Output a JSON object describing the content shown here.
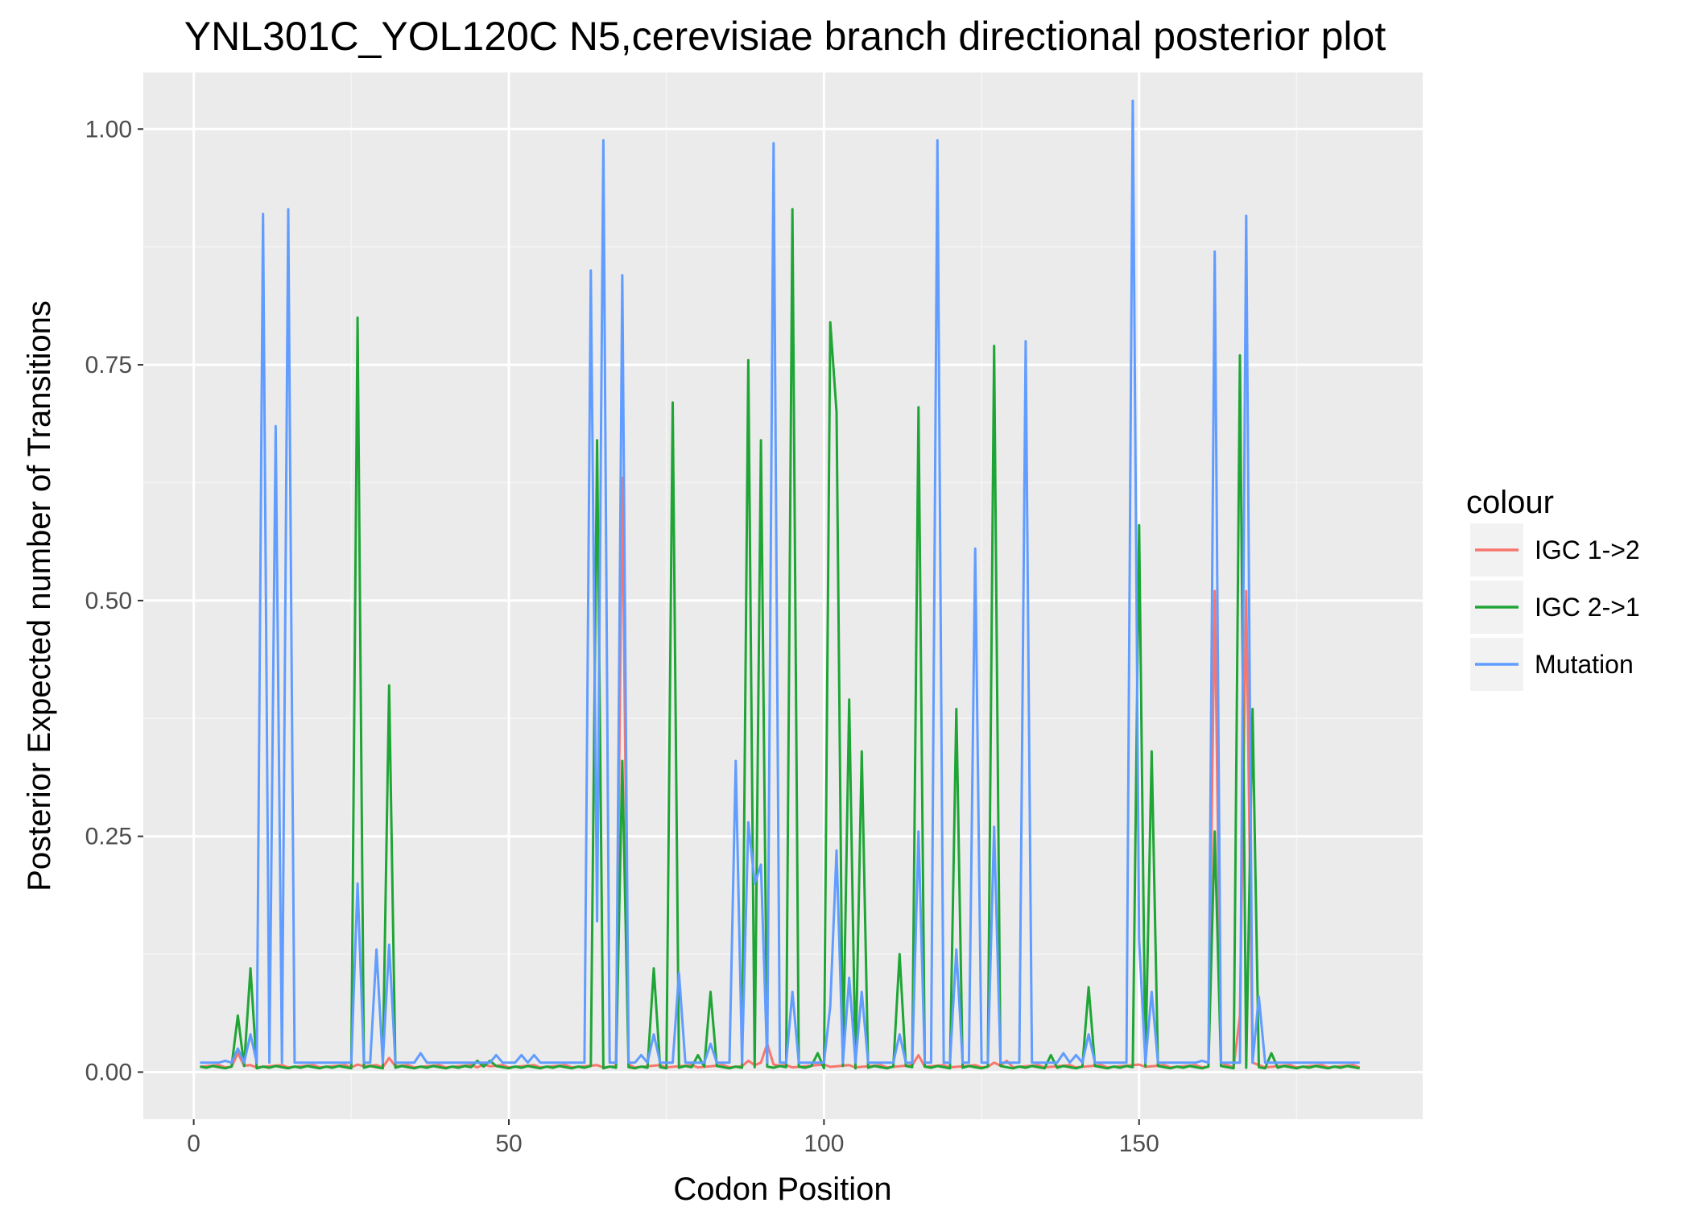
{
  "chart_data": {
    "type": "line",
    "title": "YNL301C_YOL120C N5,cerevisiae branch directional posterior plot",
    "xlabel": "Codon Position",
    "ylabel": "Posterior Expected number of Transitions",
    "xlim": [
      -8,
      195
    ],
    "ylim": [
      -0.05,
      1.06
    ],
    "xticks": [
      0,
      50,
      100,
      150
    ],
    "xtick_labels": [
      "0",
      "50",
      "100",
      "150"
    ],
    "yticks": [
      0,
      0.25,
      0.5,
      0.75,
      1.0
    ],
    "ytick_labels": [
      "0.00",
      "0.25",
      "0.50",
      "0.75",
      "1.00"
    ],
    "grid": true,
    "legend": {
      "title": "colour",
      "position": "right",
      "entries": [
        "IGC 1->2",
        "IGC 2->1",
        "Mutation"
      ]
    },
    "series": [
      {
        "name": "IGC 1->2",
        "color": "#F8766D",
        "baseline": 0.005,
        "spikes": [
          [
            7,
            0.02
          ],
          [
            26,
            0.008
          ],
          [
            31,
            0.015
          ],
          [
            46,
            0.008
          ],
          [
            68,
            0.63
          ],
          [
            69,
            0.008
          ],
          [
            88,
            0.012
          ],
          [
            90,
            0.01
          ],
          [
            91,
            0.03
          ],
          [
            92,
            0.008
          ],
          [
            100,
            0.008
          ],
          [
            115,
            0.018
          ],
          [
            127,
            0.01
          ],
          [
            129,
            0.012
          ],
          [
            150,
            0.008
          ],
          [
            162,
            0.51
          ],
          [
            163,
            0.01
          ],
          [
            166,
            0.06
          ],
          [
            167,
            0.51
          ],
          [
            168,
            0.01
          ]
        ]
      },
      {
        "name": "IGC 2->1",
        "color": "#1FA535",
        "baseline": 0.004,
        "spikes": [
          [
            7,
            0.06
          ],
          [
            9,
            0.11
          ],
          [
            26,
            0.8
          ],
          [
            31,
            0.41
          ],
          [
            45,
            0.012
          ],
          [
            47,
            0.012
          ],
          [
            64,
            0.67
          ],
          [
            68,
            0.33
          ],
          [
            73,
            0.11
          ],
          [
            76,
            0.71
          ],
          [
            80,
            0.018
          ],
          [
            82,
            0.085
          ],
          [
            88,
            0.755
          ],
          [
            90,
            0.67
          ],
          [
            95,
            0.915
          ],
          [
            99,
            0.02
          ],
          [
            101,
            0.795
          ],
          [
            102,
            0.7
          ],
          [
            104,
            0.395
          ],
          [
            106,
            0.34
          ],
          [
            112,
            0.125
          ],
          [
            115,
            0.705
          ],
          [
            121,
            0.385
          ],
          [
            127,
            0.77
          ],
          [
            136,
            0.018
          ],
          [
            142,
            0.09
          ],
          [
            150,
            0.58
          ],
          [
            152,
            0.34
          ],
          [
            162,
            0.255
          ],
          [
            166,
            0.76
          ],
          [
            168,
            0.385
          ],
          [
            171,
            0.02
          ]
        ]
      },
      {
        "name": "Mutation",
        "color": "#619CFF",
        "baseline": 0.01,
        "spikes": [
          [
            5,
            0.012
          ],
          [
            7,
            0.025
          ],
          [
            9,
            0.04
          ],
          [
            11,
            0.91
          ],
          [
            13,
            0.685
          ],
          [
            15,
            0.915
          ],
          [
            26,
            0.2
          ],
          [
            29,
            0.13
          ],
          [
            31,
            0.135
          ],
          [
            36,
            0.02
          ],
          [
            48,
            0.018
          ],
          [
            52,
            0.018
          ],
          [
            54,
            0.018
          ],
          [
            63,
            0.85
          ],
          [
            64,
            0.16
          ],
          [
            65,
            0.988
          ],
          [
            68,
            0.845
          ],
          [
            71,
            0.018
          ],
          [
            73,
            0.04
          ],
          [
            77,
            0.105
          ],
          [
            82,
            0.03
          ],
          [
            86,
            0.33
          ],
          [
            88,
            0.265
          ],
          [
            89,
            0.2
          ],
          [
            90,
            0.22
          ],
          [
            92,
            0.985
          ],
          [
            95,
            0.085
          ],
          [
            101,
            0.07
          ],
          [
            102,
            0.235
          ],
          [
            104,
            0.1
          ],
          [
            106,
            0.085
          ],
          [
            112,
            0.04
          ],
          [
            115,
            0.255
          ],
          [
            118,
            0.988
          ],
          [
            121,
            0.13
          ],
          [
            124,
            0.555
          ],
          [
            127,
            0.26
          ],
          [
            132,
            0.775
          ],
          [
            138,
            0.02
          ],
          [
            140,
            0.018
          ],
          [
            142,
            0.04
          ],
          [
            149,
            1.03
          ],
          [
            150,
            0.14
          ],
          [
            152,
            0.085
          ],
          [
            160,
            0.012
          ],
          [
            162,
            0.87
          ],
          [
            167,
            0.908
          ],
          [
            169,
            0.08
          ]
        ]
      }
    ]
  }
}
